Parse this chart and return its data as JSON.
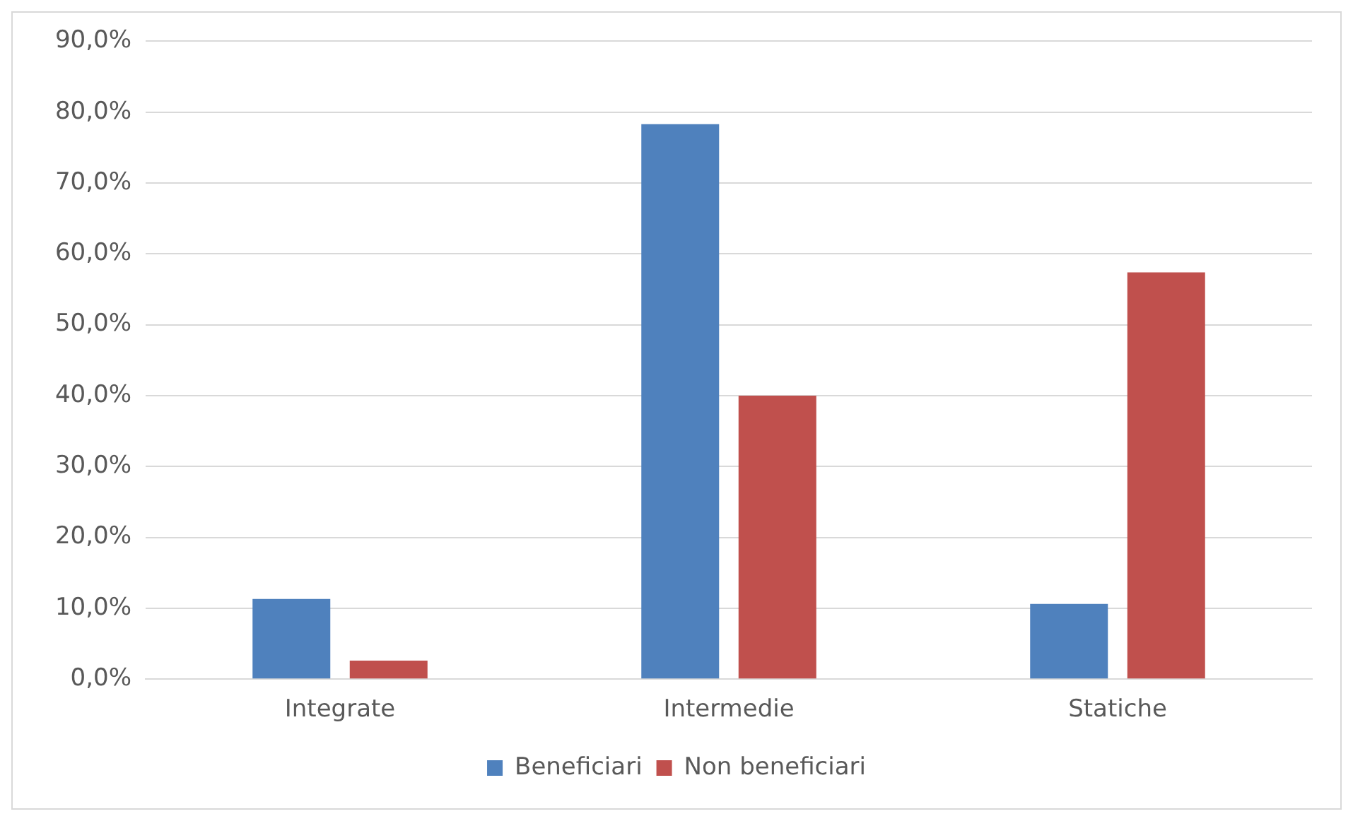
{
  "chart_data": {
    "type": "bar",
    "categories": [
      "Integrate",
      "Intermedie",
      "Statiche"
    ],
    "series": [
      {
        "name": "Beneficiari",
        "color": "#4f81bd",
        "values": [
          11.3,
          78.3,
          10.6
        ]
      },
      {
        "name": "Non beneficiari",
        "color": "#c0504d",
        "values": [
          2.6,
          40.0,
          57.4
        ]
      }
    ],
    "ylim": [
      0,
      90
    ],
    "yticks": [
      {
        "value": 0,
        "label": "0,0%"
      },
      {
        "value": 10,
        "label": "10,0%"
      },
      {
        "value": 20,
        "label": "20,0%"
      },
      {
        "value": 30,
        "label": "30,0%"
      },
      {
        "value": 40,
        "label": "40,0%"
      },
      {
        "value": 50,
        "label": "50,0%"
      },
      {
        "value": 60,
        "label": "60,0%"
      },
      {
        "value": 70,
        "label": "70,0%"
      },
      {
        "value": 80,
        "label": "80,0%"
      },
      {
        "value": 90,
        "label": "90,0%"
      }
    ],
    "grid": "y",
    "legend": "bottom"
  }
}
